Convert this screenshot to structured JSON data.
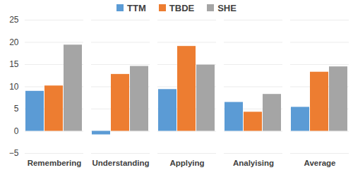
{
  "chart_data": {
    "type": "bar",
    "categories": [
      "Remembering",
      "Understanding",
      "Applying",
      "Analyising",
      "Average"
    ],
    "series": [
      {
        "name": "TTM",
        "color": "#5b9bd5",
        "values": [
          9.0,
          -0.8,
          9.4,
          6.5,
          5.4
        ]
      },
      {
        "name": "TBDE",
        "color": "#ed7d31",
        "values": [
          10.2,
          12.8,
          19.1,
          4.3,
          13.3
        ]
      },
      {
        "name": "SHE",
        "color": "#a5a5a5",
        "values": [
          19.4,
          14.6,
          14.9,
          8.3,
          14.5
        ]
      }
    ],
    "ylim": [
      -5,
      25
    ],
    "yticks": [
      -5,
      0,
      5,
      10,
      15,
      20,
      25
    ],
    "grid": true,
    "legend": "top",
    "data_labels": false
  }
}
